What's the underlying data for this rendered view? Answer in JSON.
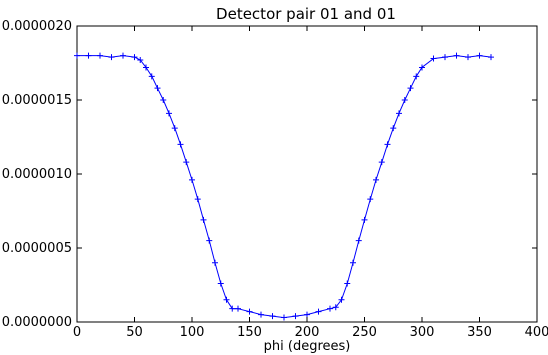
{
  "chart_data": {
    "type": "line",
    "title": "Detector pair 01 and 01",
    "xlabel": "phi (degrees)",
    "ylabel": "",
    "xlim": [
      0,
      400
    ],
    "ylim": [
      0.0,
      2e-06
    ],
    "x_ticks": [
      "0",
      "50",
      "100",
      "150",
      "200",
      "250",
      "300",
      "350",
      "400"
    ],
    "y_ticks": [
      "0.0000000",
      "0.0000005",
      "0.0000010",
      "0.0000015",
      "0.0000020"
    ],
    "grid": false,
    "legend": "none",
    "series": [
      {
        "color": "#0000ff",
        "marker": "plus",
        "x": [
          0,
          10,
          20,
          30,
          40,
          50,
          55,
          60,
          65,
          70,
          75,
          80,
          85,
          90,
          95,
          100,
          105,
          110,
          115,
          120,
          125,
          130,
          135,
          140,
          150,
          160,
          170,
          180,
          190,
          200,
          210,
          220,
          225,
          230,
          235,
          240,
          245,
          250,
          255,
          260,
          265,
          270,
          275,
          280,
          285,
          290,
          295,
          300,
          310,
          320,
          330,
          340,
          350,
          360
        ],
        "y": [
          1.8e-06,
          1.8e-06,
          1.8e-06,
          1.79e-06,
          1.8e-06,
          1.79e-06,
          1.77e-06,
          1.72e-06,
          1.66e-06,
          1.58e-06,
          1.5e-06,
          1.41e-06,
          1.31e-06,
          1.2e-06,
          1.08e-06,
          9.6e-07,
          8.3e-07,
          6.9e-07,
          5.5e-07,
          4e-07,
          2.6e-07,
          1.5e-07,
          9e-08,
          9e-08,
          7e-08,
          5e-08,
          4e-08,
          3e-08,
          4e-08,
          5e-08,
          7e-08,
          9e-08,
          1e-07,
          1.5e-07,
          2.6e-07,
          4e-07,
          5.5e-07,
          6.9e-07,
          8.3e-07,
          9.6e-07,
          1.08e-06,
          1.2e-06,
          1.31e-06,
          1.41e-06,
          1.5e-06,
          1.58e-06,
          1.66e-06,
          1.72e-06,
          1.78e-06,
          1.79e-06,
          1.8e-06,
          1.79e-06,
          1.8e-06,
          1.79e-06
        ]
      }
    ]
  }
}
